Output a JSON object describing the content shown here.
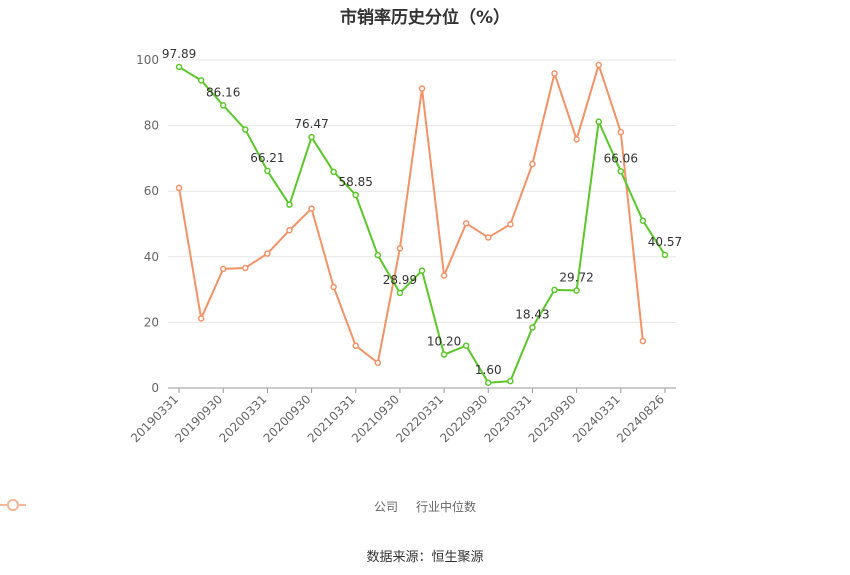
{
  "chart_data": {
    "type": "line",
    "title": "市销率历史分位（%）",
    "source": "数据来源：恒生聚源",
    "x_ticks": [
      "20190331",
      "20190930",
      "20200331",
      "20200930",
      "20210331",
      "20210930",
      "20220331",
      "20220930",
      "20230331",
      "20230930",
      "20240331",
      "20240826"
    ],
    "ylim": [
      0,
      100
    ],
    "y_ticks": [
      0,
      20,
      40,
      60,
      80,
      100
    ],
    "grid": true,
    "legend_position": "bottom",
    "series": [
      {
        "name": "公司",
        "color": "#5cc72a",
        "values": [
          97.89,
          93.8,
          86.16,
          78.8,
          66.21,
          55.9,
          76.47,
          65.9,
          58.85,
          40.5,
          28.99,
          35.8,
          10.2,
          12.9,
          1.6,
          2.1,
          18.43,
          29.9,
          29.72,
          81.2,
          66.06,
          51.0,
          40.57
        ],
        "labels": {
          "0": "97.89",
          "2": "86.16",
          "4": "66.21",
          "6": "76.47",
          "8": "58.85",
          "10": "28.99",
          "12": "10.20",
          "14": "1.60",
          "16": "18.43",
          "18": "29.72",
          "20": "66.06",
          "22": "40.57"
        }
      },
      {
        "name": "行业中位数",
        "color": "#f49267",
        "values": [
          61.0,
          21.2,
          36.3,
          36.6,
          41.0,
          48.1,
          54.7,
          30.8,
          12.9,
          7.7,
          42.6,
          91.3,
          34.3,
          50.2,
          45.9,
          49.9,
          68.3,
          95.9,
          75.8,
          98.5,
          78.0,
          14.3,
          null
        ]
      }
    ]
  }
}
